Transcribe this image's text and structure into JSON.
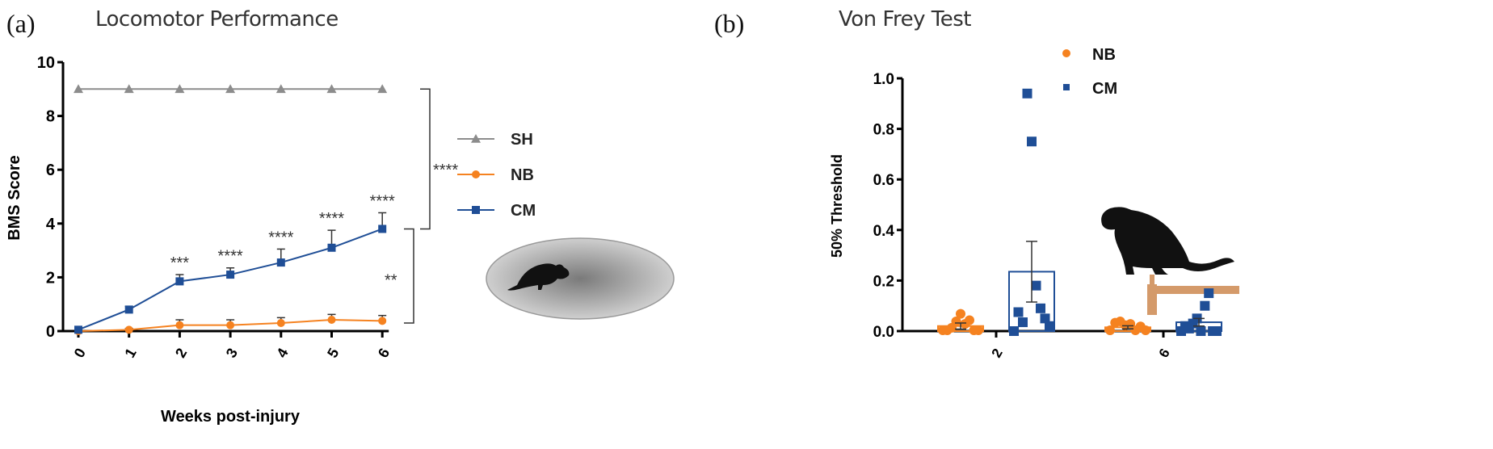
{
  "chart_data": [
    {
      "type": "line",
      "panel_label": "(a)",
      "title": "Locomotor Performance",
      "xlabel": "Weeks post-injury",
      "ylabel": "BMS Score",
      "x": [
        0,
        1,
        2,
        3,
        4,
        5,
        6
      ],
      "x_tick_labels": [
        "0",
        "1",
        "2",
        "3",
        "4",
        "5",
        "6"
      ],
      "ylim": [
        0,
        10
      ],
      "y_ticks": [
        0,
        2,
        4,
        6,
        8,
        10
      ],
      "y_tick_labels": [
        "0",
        "2",
        "4",
        "6",
        "8",
        "10"
      ],
      "legend_placement": "right",
      "series": [
        {
          "name": "SH",
          "color": "#8c8c8c",
          "marker": "triangle",
          "values": [
            9,
            9,
            9,
            9,
            9,
            9,
            9
          ],
          "errors": [
            0,
            0,
            0,
            0,
            0,
            0,
            0
          ]
        },
        {
          "name": "NB",
          "color": "#f58220",
          "marker": "circle",
          "values": [
            0,
            0.05,
            0.22,
            0.22,
            0.3,
            0.42,
            0.38
          ],
          "errors": [
            0,
            0.05,
            0.2,
            0.2,
            0.2,
            0.2,
            0.2
          ]
        },
        {
          "name": "CM",
          "color": "#1f4e96",
          "marker": "square",
          "values": [
            0.05,
            0.8,
            1.85,
            2.1,
            2.55,
            3.1,
            3.8
          ],
          "errors": [
            0.05,
            0.12,
            0.25,
            0.25,
            0.5,
            0.65,
            0.6
          ]
        }
      ],
      "annotations": [
        {
          "x": 2,
          "text": "***"
        },
        {
          "x": 3,
          "text": "****"
        },
        {
          "x": 4,
          "text": "****"
        },
        {
          "x": 5,
          "text": "****"
        },
        {
          "x": 6,
          "text": "****"
        }
      ],
      "brackets": [
        {
          "from": 9,
          "to": 3.8,
          "text": "****"
        },
        {
          "from": 3.8,
          "to": 0.3,
          "text": "**"
        }
      ]
    },
    {
      "type": "bar",
      "panel_label": "(b)",
      "title": "Von Frey Test",
      "xlabel": "",
      "ylabel": "50% Threshold",
      "categories": [
        "2",
        "6"
      ],
      "ylim": [
        0,
        1.0
      ],
      "y_ticks": [
        0,
        0.2,
        0.4,
        0.6,
        0.8,
        1.0
      ],
      "y_tick_labels": [
        "0.0",
        "0.2",
        "0.4",
        "0.6",
        "0.8",
        "1.0"
      ],
      "legend_placement": "top-right",
      "series": [
        {
          "name": "NB",
          "color": "#f58220",
          "marker": "circle",
          "values": [
            0.02,
            0.015
          ],
          "errors": [
            0.012,
            0.006
          ],
          "points": [
            [
              0,
              0,
              0.01,
              0.035,
              0.065,
              0.025,
              0.04,
              0,
              0
            ],
            [
              0,
              0.03,
              0.035,
              0.02,
              0.025,
              0,
              0.015,
              0
            ]
          ]
        },
        {
          "name": "CM",
          "color": "#1f4e96",
          "marker": "square",
          "values": [
            0.235,
            0.035
          ],
          "errors": [
            0.12,
            0.015
          ],
          "points": [
            [
              0,
              0.075,
              0.035,
              0.94,
              0.75,
              0.18,
              0.09,
              0.05,
              0.02
            ],
            [
              0,
              0.02,
              0.01,
              0.03,
              0.05,
              0,
              0.1,
              0.15,
              0,
              0
            ]
          ]
        }
      ]
    }
  ]
}
